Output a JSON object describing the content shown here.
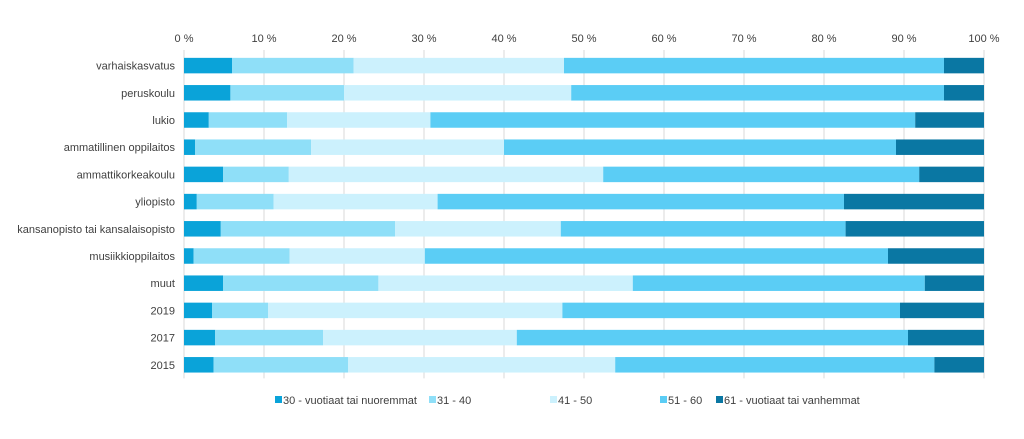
{
  "chart_data": {
    "type": "bar",
    "orientation": "horizontal",
    "stacked": true,
    "percent": true,
    "xlim": [
      0,
      100
    ],
    "x_ticks": [
      "0 %",
      "10 %",
      "20 %",
      "30 %",
      "40 %",
      "50 %",
      "60 %",
      "70 %",
      "80 %",
      "90 %",
      "100 %"
    ],
    "legend_position": "bottom",
    "grid": true,
    "categories": [
      "varhaiskasvatus",
      "peruskoulu",
      "lukio",
      "ammatillinen oppilaitos",
      "ammattikorkeakoulu",
      "yliopisto",
      "kansanopisto tai kansalaisopisto",
      "musiikkioppilaitos",
      "muut",
      "2019",
      "2017",
      "2015"
    ],
    "series": [
      {
        "name": "30 - vuotiaat tai nuoremmat",
        "color": "#0aa3d9",
        "values": [
          6,
          5.8,
          3.1,
          1.4,
          4.9,
          1.6,
          4.6,
          1.2,
          4.9,
          3.5,
          3.9,
          3.7
        ]
      },
      {
        "name": "31 - 40",
        "color": "#8fdff8",
        "values": [
          15.2,
          14.2,
          9.8,
          14.5,
          8.2,
          9.6,
          21.8,
          12.0,
          19.4,
          7.0,
          13.5,
          16.8
        ]
      },
      {
        "name": "41 - 50",
        "color": "#ccf1fd",
        "values": [
          26.3,
          28.4,
          17.9,
          24.1,
          39.3,
          20.5,
          20.7,
          16.9,
          31.8,
          36.8,
          24.2,
          33.4
        ]
      },
      {
        "name": "51 - 60",
        "color": "#5bcdf5",
        "values": [
          47.5,
          46.6,
          60.6,
          49.0,
          39.5,
          50.8,
          35.6,
          57.9,
          36.5,
          42.2,
          48.9,
          39.9
        ]
      },
      {
        "name": "61 - vuotiaat tai vanhemmat",
        "color": "#0a77a3",
        "values": [
          5,
          5,
          8.6,
          11,
          8.1,
          17.5,
          17.3,
          12,
          7.4,
          10.5,
          9.5,
          6.2
        ]
      }
    ]
  }
}
